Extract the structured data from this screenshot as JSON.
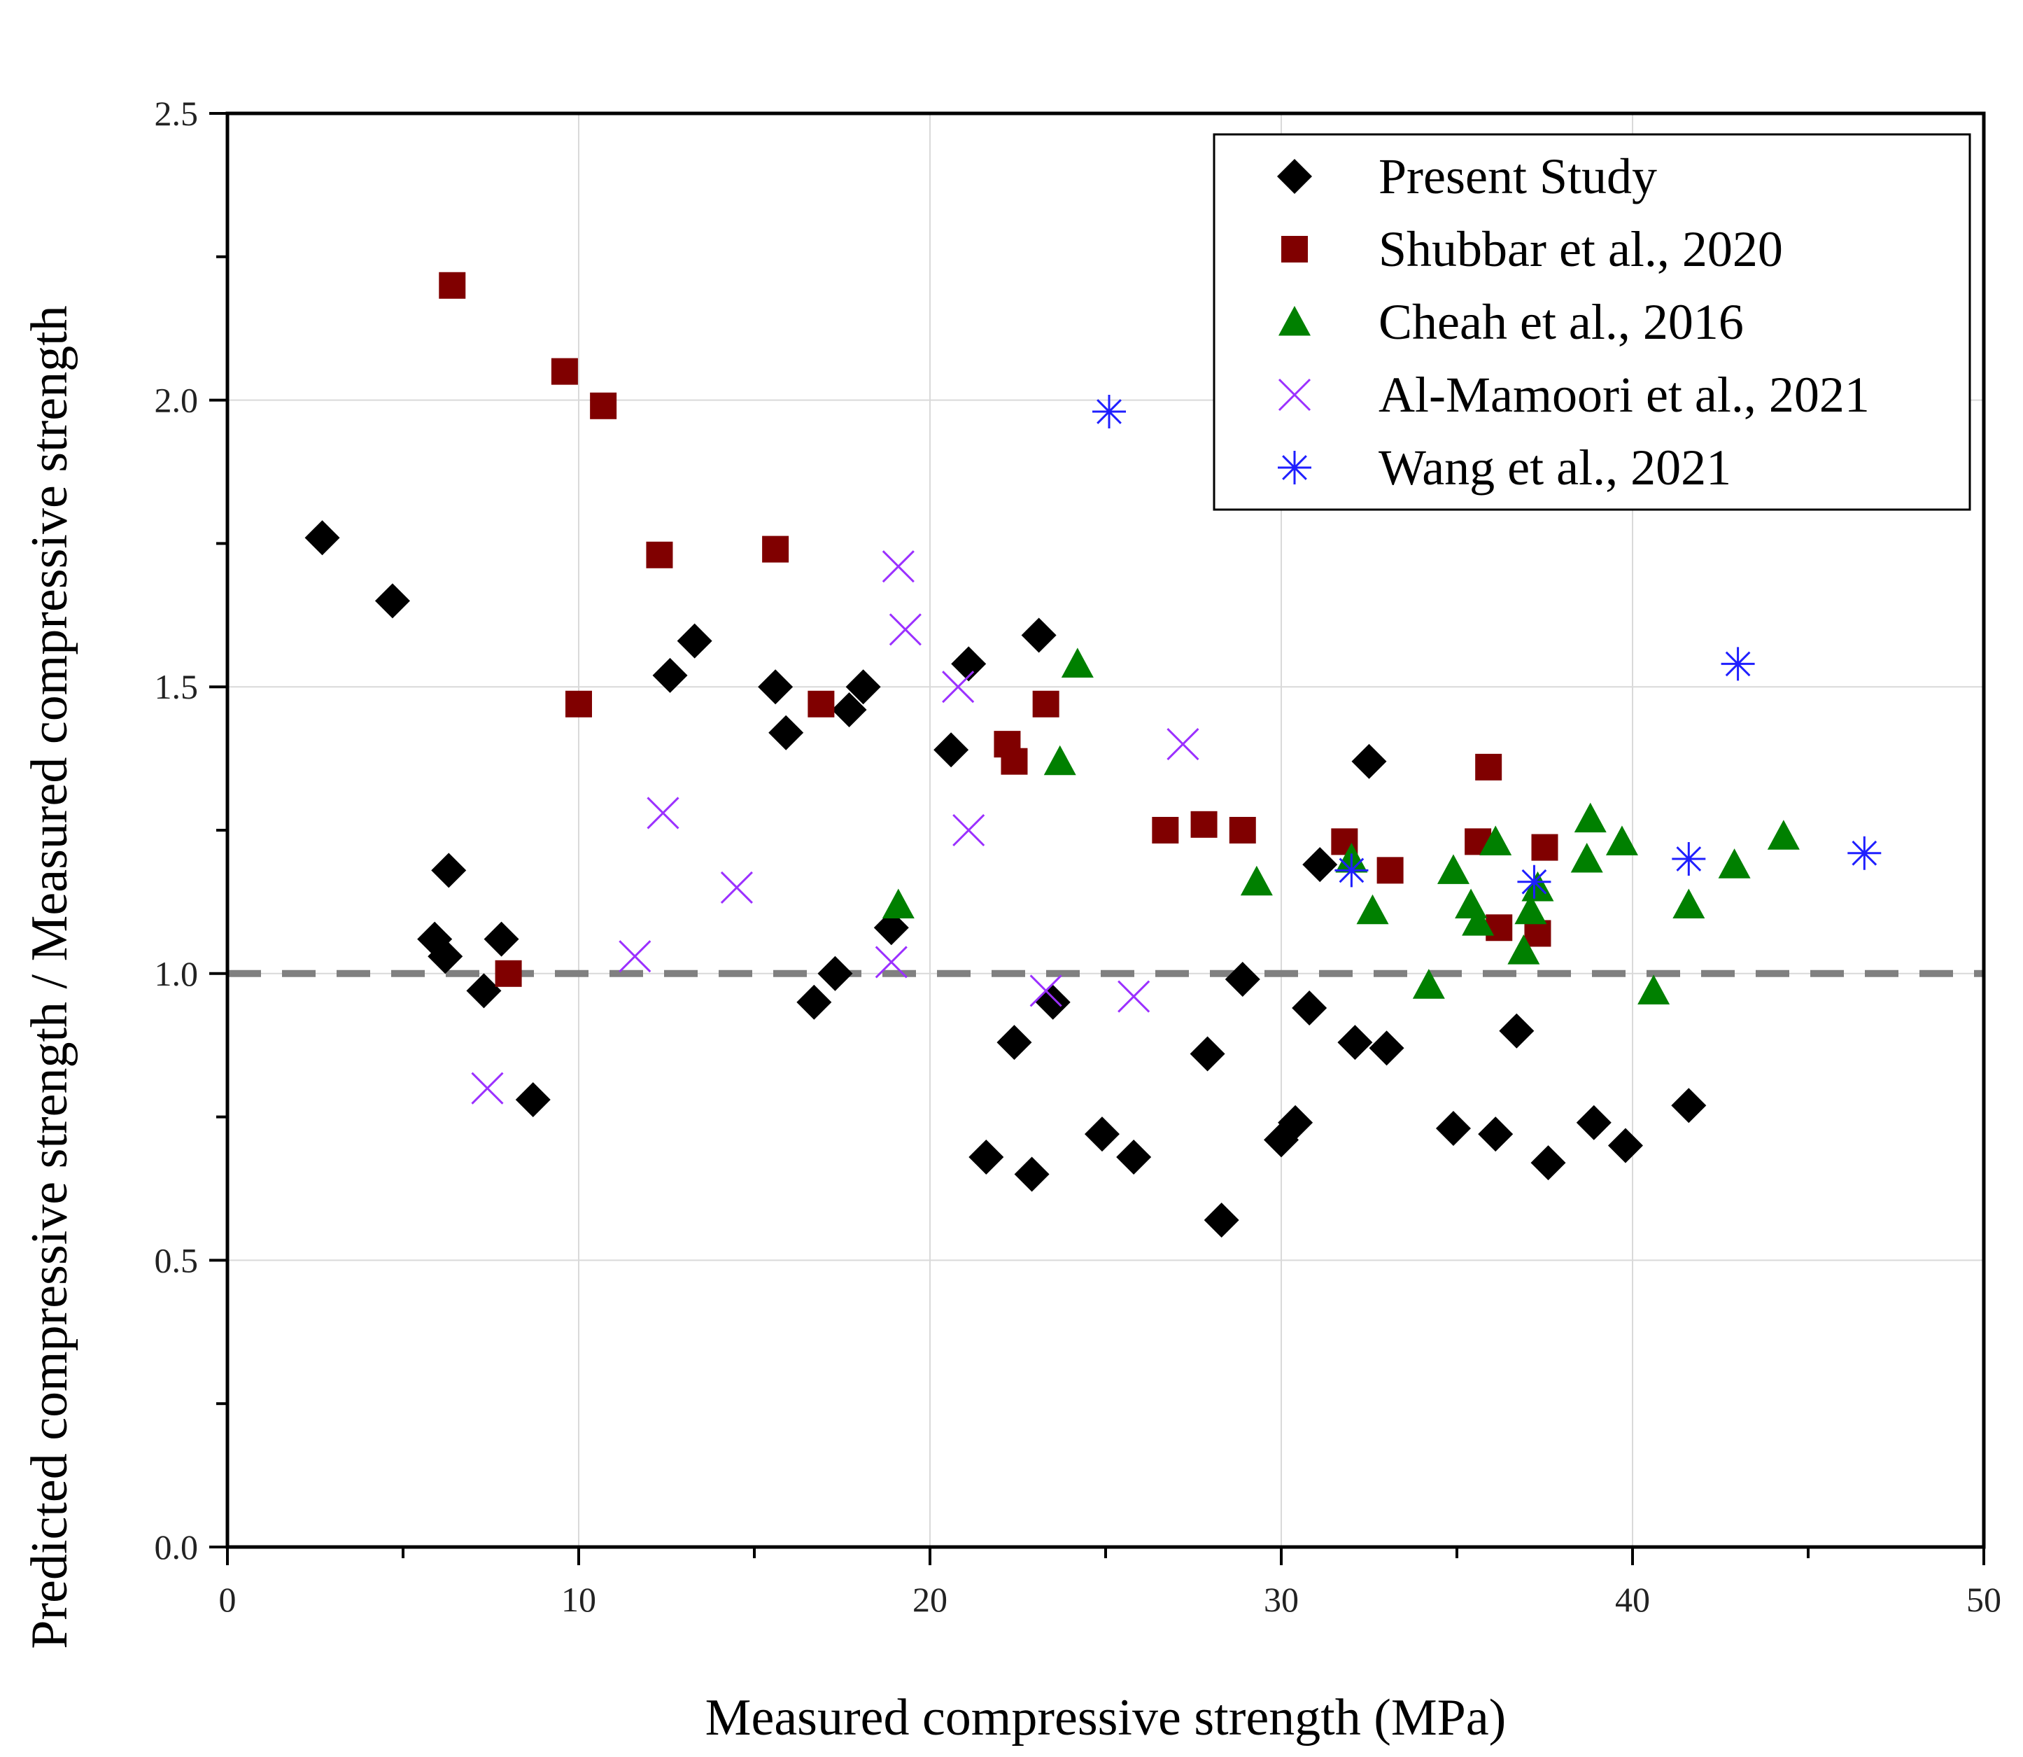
{
  "chart_data": {
    "type": "scatter",
    "title": "",
    "xlabel": "Measured compressive strength (MPa)",
    "ylabel": "Predicted compressive strength / Measured compressive strength",
    "xlim": [
      0,
      50
    ],
    "ylim": [
      0,
      2.5
    ],
    "x_ticks": [
      "0",
      "10",
      "20",
      "30",
      "40",
      "50"
    ],
    "y_ticks": [
      "0.0",
      "0.5",
      "1.0",
      "1.5",
      "2.0",
      "2.5"
    ],
    "grid": true,
    "legend_position": "top-right",
    "reference_line": {
      "y": 1.0,
      "style": "dashed",
      "color": "#808080"
    },
    "series": [
      {
        "name": "Present Study",
        "marker": "diamond",
        "color": "#000000",
        "points": [
          [
            2.7,
            1.76
          ],
          [
            4.7,
            1.65
          ],
          [
            5.9,
            1.06
          ],
          [
            6.2,
            1.03
          ],
          [
            6.3,
            1.18
          ],
          [
            7.3,
            0.97
          ],
          [
            7.8,
            1.06
          ],
          [
            8.7,
            0.78
          ],
          [
            12.6,
            1.52
          ],
          [
            13.3,
            1.58
          ],
          [
            15.6,
            1.5
          ],
          [
            15.9,
            1.42
          ],
          [
            16.7,
            0.95
          ],
          [
            17.3,
            1.0
          ],
          [
            17.7,
            1.46
          ],
          [
            18.1,
            1.5
          ],
          [
            18.9,
            1.08
          ],
          [
            20.6,
            1.39
          ],
          [
            21.1,
            1.54
          ],
          [
            21.6,
            0.68
          ],
          [
            22.4,
            0.88
          ],
          [
            22.9,
            0.65
          ],
          [
            23.1,
            1.59
          ],
          [
            23.5,
            0.95
          ],
          [
            24.9,
            0.72
          ],
          [
            25.8,
            0.68
          ],
          [
            27.9,
            0.86
          ],
          [
            28.3,
            0.57
          ],
          [
            28.9,
            0.99
          ],
          [
            30.0,
            0.71
          ],
          [
            30.4,
            0.74
          ],
          [
            30.8,
            0.94
          ],
          [
            31.1,
            1.19
          ],
          [
            32.1,
            0.88
          ],
          [
            32.5,
            1.37
          ],
          [
            33.0,
            0.87
          ],
          [
            34.9,
            0.73
          ],
          [
            36.1,
            0.72
          ],
          [
            36.7,
            0.9
          ],
          [
            37.6,
            0.67
          ],
          [
            38.9,
            0.74
          ],
          [
            39.8,
            0.7
          ],
          [
            41.6,
            0.77
          ]
        ]
      },
      {
        "name": "Shubbar et al., 2020",
        "marker": "square",
        "color": "#800000",
        "points": [
          [
            6.4,
            2.2
          ],
          [
            8.0,
            1.0
          ],
          [
            9.6,
            2.05
          ],
          [
            10.7,
            1.99
          ],
          [
            10.0,
            1.47
          ],
          [
            12.3,
            1.73
          ],
          [
            15.6,
            1.74
          ],
          [
            16.9,
            1.47
          ],
          [
            22.2,
            1.4
          ],
          [
            22.4,
            1.37
          ],
          [
            23.3,
            1.47
          ],
          [
            26.7,
            1.25
          ],
          [
            27.8,
            1.26
          ],
          [
            28.9,
            1.25
          ],
          [
            31.8,
            1.23
          ],
          [
            33.1,
            1.18
          ],
          [
            35.6,
            1.23
          ],
          [
            35.9,
            1.36
          ],
          [
            36.2,
            1.08
          ],
          [
            37.3,
            1.07
          ],
          [
            37.5,
            1.22
          ]
        ]
      },
      {
        "name": "Cheah et al., 2016",
        "marker": "triangle",
        "color": "#008000",
        "points": [
          [
            19.1,
            1.12
          ],
          [
            23.7,
            1.37
          ],
          [
            24.2,
            1.54
          ],
          [
            29.3,
            1.16
          ],
          [
            32.0,
            1.2
          ],
          [
            32.6,
            1.11
          ],
          [
            34.2,
            0.98
          ],
          [
            34.9,
            1.18
          ],
          [
            35.4,
            1.12
          ],
          [
            35.6,
            1.09
          ],
          [
            36.1,
            1.23
          ],
          [
            36.9,
            1.04
          ],
          [
            37.1,
            1.11
          ],
          [
            37.3,
            1.15
          ],
          [
            38.7,
            1.2
          ],
          [
            38.8,
            1.27
          ],
          [
            39.7,
            1.23
          ],
          [
            40.6,
            0.97
          ],
          [
            41.6,
            1.12
          ],
          [
            42.9,
            1.19
          ],
          [
            44.3,
            1.24
          ]
        ]
      },
      {
        "name": "Al-Mamoori et al., 2021",
        "marker": "x",
        "color": "#9B30FF",
        "points": [
          [
            7.4,
            0.8
          ],
          [
            11.6,
            1.03
          ],
          [
            12.4,
            1.28
          ],
          [
            14.5,
            1.15
          ],
          [
            18.9,
            1.02
          ],
          [
            19.1,
            1.71
          ],
          [
            19.3,
            1.6
          ],
          [
            20.8,
            1.5
          ],
          [
            21.1,
            1.25
          ],
          [
            23.3,
            0.97
          ],
          [
            25.8,
            0.96
          ],
          [
            27.2,
            1.4
          ]
        ]
      },
      {
        "name": "Wang et al., 2021",
        "marker": "asterisk",
        "color": "#1F1FFF",
        "points": [
          [
            25.1,
            1.98
          ],
          [
            32.0,
            1.18
          ],
          [
            37.2,
            1.16
          ],
          [
            41.6,
            1.2
          ],
          [
            43.0,
            1.54
          ],
          [
            46.6,
            1.21
          ]
        ]
      }
    ]
  }
}
